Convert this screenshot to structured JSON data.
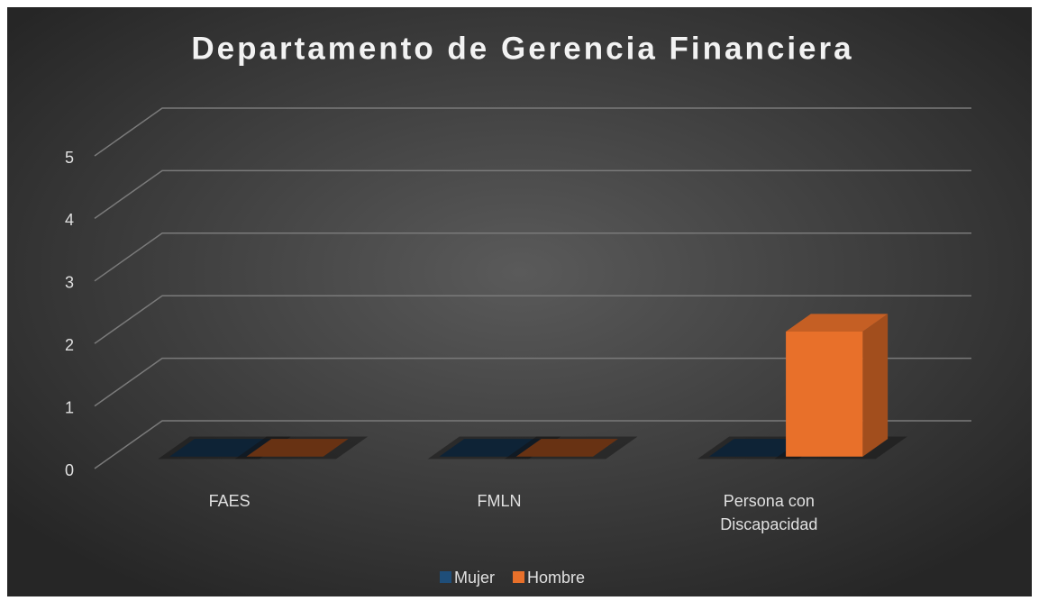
{
  "chart_data": {
    "type": "bar3d",
    "title": "Departamento de Gerencia Financiera",
    "categories": [
      "FAES",
      "FMLN",
      "Persona con Discapacidad"
    ],
    "series": [
      {
        "name": "Mujer",
        "color": "#1f4e79",
        "values": [
          0,
          0,
          0
        ]
      },
      {
        "name": "Hombre",
        "color": "#e8702a",
        "values": [
          0,
          0,
          2
        ]
      }
    ],
    "ylim": [
      0,
      5
    ],
    "yticks": [
      0,
      1,
      2,
      3,
      4,
      5
    ],
    "grid": true,
    "legend": "bottom"
  }
}
